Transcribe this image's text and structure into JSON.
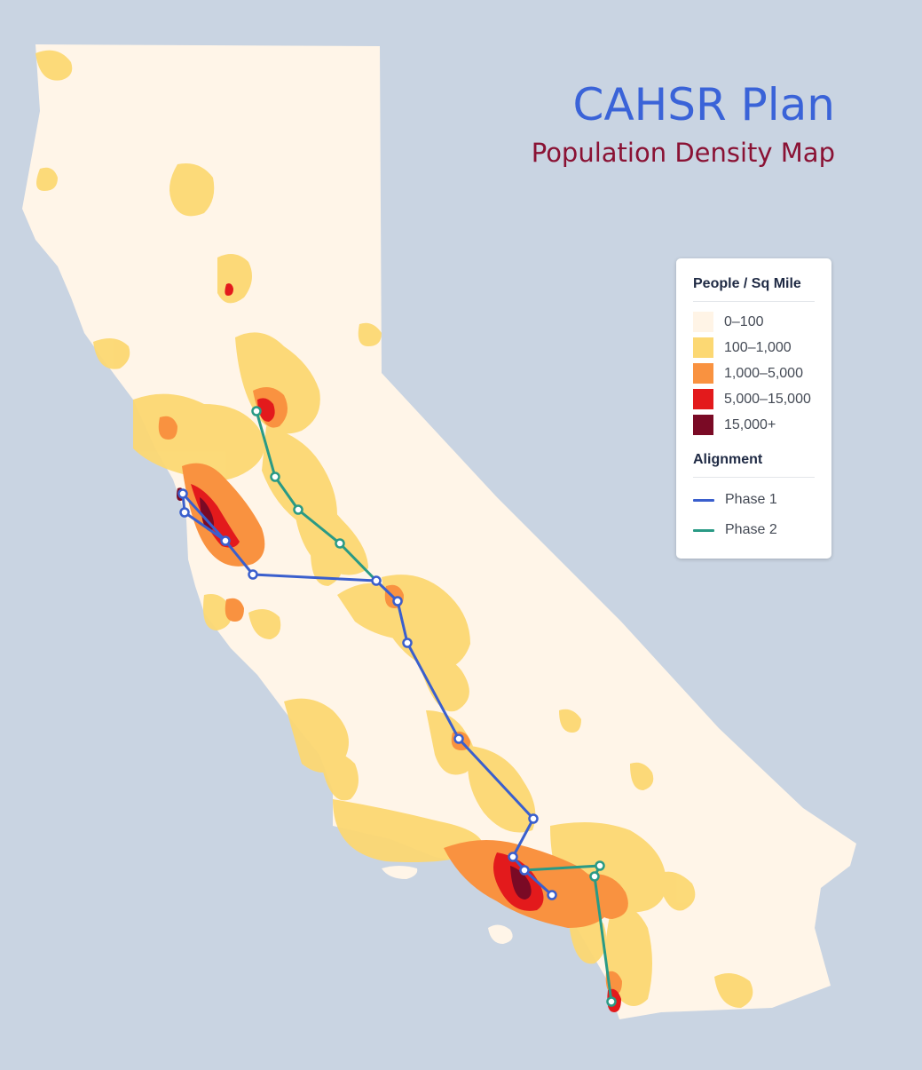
{
  "title": "CAHSR Plan",
  "subtitle": "Population Density Map",
  "colors": {
    "background": "#c9d4e2",
    "title": "#3a63d8",
    "subtitle": "#8a1234",
    "phase1": "#3a5fcd",
    "phase2": "#2a9a85"
  },
  "legend": {
    "density_title": "People / Sq Mile",
    "density_classes": [
      {
        "label": "0–100",
        "color": "#fff4e6"
      },
      {
        "label": "100–1,000",
        "color": "#fcd873"
      },
      {
        "label": "1,000–5,000",
        "color": "#f99240"
      },
      {
        "label": "5,000–15,000",
        "color": "#e31a1c"
      },
      {
        "label": "15,000+",
        "color": "#7a0a25"
      }
    ],
    "alignment_title": "Alignment",
    "alignment_items": [
      {
        "label": "Phase 1",
        "color": "#3a5fcd"
      },
      {
        "label": "Phase 2",
        "color": "#2a9a85"
      }
    ]
  }
}
